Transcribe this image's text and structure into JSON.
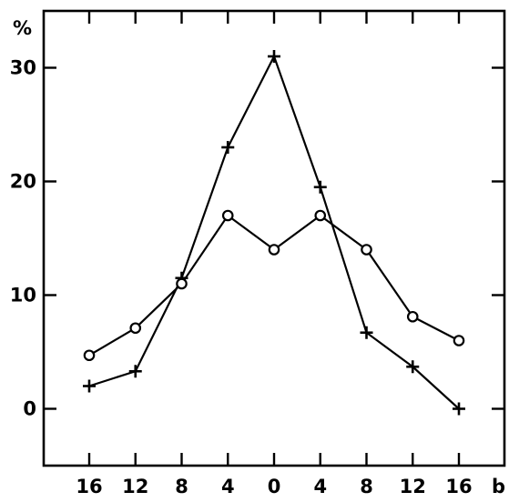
{
  "chart_data": {
    "type": "line",
    "ylabel": "%",
    "xlabel": "b",
    "x_tick_labels": [
      "16",
      "12",
      "8",
      "4",
      "0",
      "4",
      "8",
      "12",
      "16"
    ],
    "y_tick_labels": [
      "0",
      "10",
      "20",
      "30"
    ],
    "y_ticks": [
      0,
      10,
      20,
      30
    ],
    "ylim": [
      -5,
      35
    ],
    "categories": [
      "16",
      "12",
      "8",
      "4",
      "0",
      "4",
      "8",
      "12",
      "16"
    ],
    "series": [
      {
        "marker": "plus",
        "values": [
          2,
          3.3,
          11.5,
          23,
          31,
          19.5,
          6.7,
          3.7,
          0
        ]
      },
      {
        "marker": "circle",
        "values": [
          4.7,
          7.1,
          11,
          17,
          14,
          17,
          14,
          8.1,
          6
        ]
      }
    ],
    "grid": false,
    "legend": "none"
  }
}
